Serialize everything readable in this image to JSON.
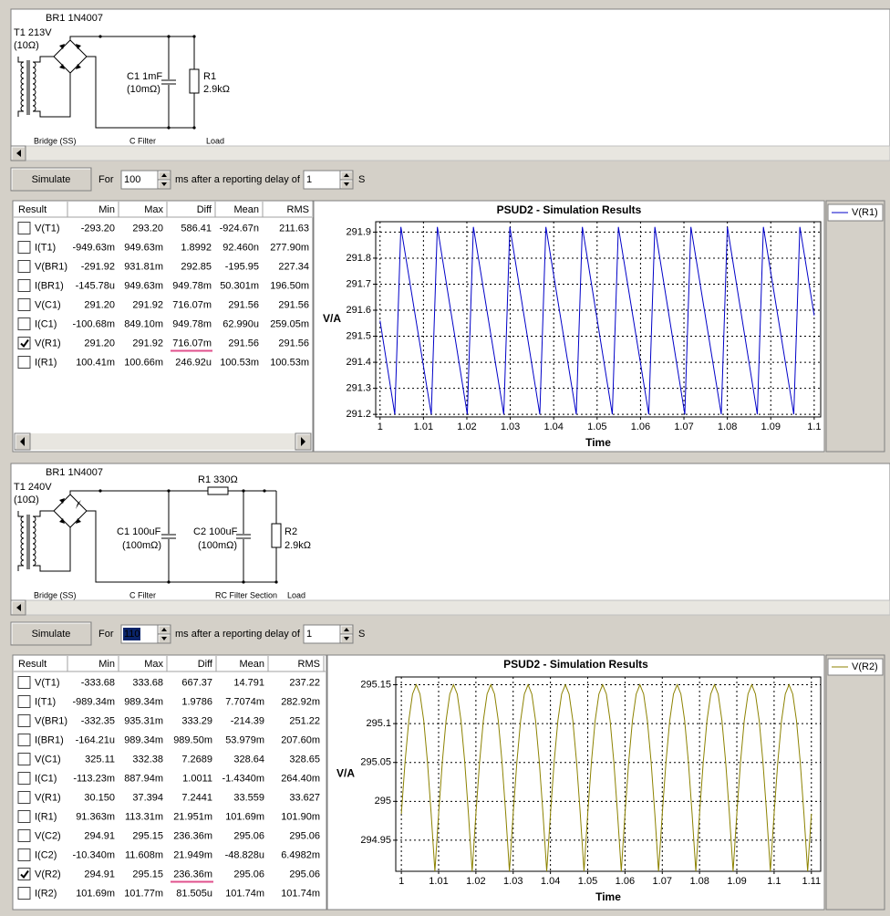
{
  "panels": [
    {
      "schematic": {
        "labels": [
          "BR1 1N4007",
          "T1 213V",
          "(10Ω)",
          "C1 1mF",
          "(10mΩ)",
          "R1",
          "2.9kΩ"
        ],
        "sections": [
          "Bridge (SS)",
          "C Filter",
          "Load"
        ]
      },
      "controls": {
        "button": "Simulate",
        "for_label": "For",
        "duration": "100",
        "ms_label": "ms  after a reporting delay of",
        "delay": "1",
        "s_label": "S"
      },
      "table": {
        "columns": [
          "Result",
          "Min",
          "Max",
          "Diff",
          "Mean",
          "RMS"
        ],
        "rows": [
          [
            "V(T1)",
            "-293.20",
            "293.20",
            "586.41",
            "-924.67n",
            "211.63"
          ],
          [
            "I(T1)",
            "-949.63m",
            "949.63m",
            "1.8992",
            "92.460n",
            "277.90m"
          ],
          [
            "V(BR1)",
            "-291.92",
            "931.81m",
            "292.85",
            "-195.95",
            "227.34"
          ],
          [
            "I(BR1)",
            "-145.78u",
            "949.63m",
            "949.78m",
            "50.301m",
            "196.50m"
          ],
          [
            "V(C1)",
            "291.20",
            "291.92",
            "716.07m",
            "291.56",
            "291.56"
          ],
          [
            "I(C1)",
            "-100.68m",
            "849.10m",
            "949.78m",
            "62.990u",
            "259.05m"
          ],
          [
            "V(R1)",
            "291.20",
            "291.92",
            "716.07m",
            "291.56",
            "291.56"
          ],
          [
            "I(R1)",
            "100.41m",
            "100.66m",
            "246.92u",
            "100.53m",
            "100.53m"
          ]
        ],
        "checked_row": 6
      },
      "chart": {
        "type": "line",
        "title": "PSUD2 - Simulation Results",
        "xlabel": "Time",
        "ylabel": "V/A",
        "x": [
          1,
          1.0034,
          1.0048,
          1.0118,
          1.0132,
          1.0201,
          1.0215,
          1.0285,
          1.0299,
          1.0368,
          1.0382,
          1.0452,
          1.0466,
          1.0535,
          1.0549,
          1.0619,
          1.0633,
          1.0702,
          1.0716,
          1.0786,
          1.08,
          1.0869,
          1.0883,
          1.0953,
          1.0967,
          1.1
        ],
        "series": [
          {
            "name": "V(R1)",
            "color": "#0000c8",
            "values": [
              291.56,
              291.2,
              291.92,
              291.2,
              291.92,
              291.2,
              291.92,
              291.2,
              291.92,
              291.2,
              291.92,
              291.2,
              291.92,
              291.2,
              291.92,
              291.2,
              291.92,
              291.2,
              291.92,
              291.2,
              291.92,
              291.2,
              291.92,
              291.2,
              291.92,
              291.58
            ]
          }
        ],
        "xlim": [
          0.999,
          1.1015
        ],
        "ylim": [
          291.19,
          291.94
        ],
        "xticks": [
          1,
          1.01,
          1.02,
          1.03,
          1.04,
          1.05,
          1.06,
          1.07,
          1.08,
          1.09,
          1.1
        ],
        "yticks": [
          291.2,
          291.3,
          291.4,
          291.5,
          291.6,
          291.7,
          291.8,
          291.9
        ],
        "grid": true
      }
    },
    {
      "schematic": {
        "labels": [
          "BR1 1N4007",
          "T1 240V",
          "(10Ω)",
          "R1 330Ω",
          "C1 100uF",
          "(100mΩ)",
          "C2 100uF",
          "(100mΩ)",
          "R2",
          "2.9kΩ"
        ],
        "sections": [
          "Bridge (SS)",
          "C Filter",
          "RC Filter Section",
          "Load"
        ]
      },
      "controls": {
        "button": "Simulate",
        "for_label": "For",
        "duration": "110",
        "ms_label": "ms  after a reporting delay of",
        "delay": "1",
        "s_label": "S"
      },
      "table": {
        "columns": [
          "Result",
          "Min",
          "Max",
          "Diff",
          "Mean",
          "RMS"
        ],
        "rows": [
          [
            "V(T1)",
            "-333.68",
            "333.68",
            "667.37",
            "14.791",
            "237.22"
          ],
          [
            "I(T1)",
            "-989.34m",
            "989.34m",
            "1.9786",
            "7.7074m",
            "282.92m"
          ],
          [
            "V(BR1)",
            "-332.35",
            "935.31m",
            "333.29",
            "-214.39",
            "251.22"
          ],
          [
            "I(BR1)",
            "-164.21u",
            "989.34m",
            "989.50m",
            "53.979m",
            "207.60m"
          ],
          [
            "V(C1)",
            "325.11",
            "332.38",
            "7.2689",
            "328.64",
            "328.65"
          ],
          [
            "I(C1)",
            "-113.23m",
            "887.94m",
            "1.0011",
            "-1.4340m",
            "264.40m"
          ],
          [
            "V(R1)",
            "30.150",
            "37.394",
            "7.2441",
            "33.559",
            "33.627"
          ],
          [
            "I(R1)",
            "91.363m",
            "113.31m",
            "21.951m",
            "101.69m",
            "101.90m"
          ],
          [
            "V(C2)",
            "294.91",
            "295.15",
            "236.36m",
            "295.06",
            "295.06"
          ],
          [
            "I(C2)",
            "-10.340m",
            "11.608m",
            "21.949m",
            "-48.828u",
            "6.4982m"
          ],
          [
            "V(R2)",
            "294.91",
            "295.15",
            "236.36m",
            "295.06",
            "295.06"
          ],
          [
            "I(R2)",
            "101.69m",
            "101.77m",
            "81.505u",
            "101.74m",
            "101.74m"
          ]
        ],
        "checked_row": 10
      },
      "chart": {
        "type": "line",
        "title": "PSUD2 - Simulation Results",
        "xlabel": "Time",
        "ylabel": "V/A",
        "x": [
          1,
          1.001,
          1.002,
          1.003,
          1.004,
          1.005,
          1.006,
          1.007,
          1.008,
          1.009,
          1.01,
          1.011,
          1.012,
          1.013,
          1.014,
          1.015,
          1.016,
          1.017,
          1.018,
          1.019,
          1.02,
          1.021,
          1.022,
          1.023,
          1.024,
          1.025,
          1.026,
          1.027,
          1.028,
          1.029,
          1.03,
          1.031,
          1.032,
          1.033,
          1.034,
          1.035,
          1.036,
          1.037,
          1.038,
          1.039,
          1.04,
          1.041,
          1.042,
          1.043,
          1.044,
          1.045,
          1.046,
          1.047,
          1.048,
          1.049,
          1.05,
          1.051,
          1.052,
          1.053,
          1.054,
          1.055,
          1.056,
          1.057,
          1.058,
          1.059,
          1.06,
          1.061,
          1.062,
          1.063,
          1.064,
          1.065,
          1.066,
          1.067,
          1.068,
          1.069,
          1.07,
          1.071,
          1.072,
          1.073,
          1.074,
          1.075,
          1.076,
          1.077,
          1.078,
          1.079,
          1.08,
          1.081,
          1.082,
          1.083,
          1.084,
          1.085,
          1.086,
          1.087,
          1.088,
          1.089,
          1.09,
          1.091,
          1.092,
          1.093,
          1.094,
          1.095,
          1.096,
          1.097,
          1.098,
          1.099,
          1.1,
          1.101,
          1.102,
          1.103,
          1.104,
          1.105,
          1.106,
          1.107,
          1.108,
          1.109,
          1.11
        ],
        "series": [
          {
            "name": "V(R2)",
            "color": "#8c8200",
            "values": [
              294.984,
              295.051,
              295.104,
              295.138,
              295.15,
              295.138,
              295.104,
              295.051,
              294.984,
              294.91,
              294.984,
              295.051,
              295.104,
              295.138,
              295.15,
              295.138,
              295.104,
              295.051,
              294.984,
              294.91,
              294.984,
              295.051,
              295.104,
              295.138,
              295.15,
              295.138,
              295.104,
              295.051,
              294.984,
              294.91,
              294.984,
              295.051,
              295.104,
              295.138,
              295.15,
              295.138,
              295.104,
              295.051,
              294.984,
              294.91,
              294.984,
              295.051,
              295.104,
              295.138,
              295.15,
              295.138,
              295.104,
              295.051,
              294.984,
              294.91,
              294.984,
              295.051,
              295.104,
              295.138,
              295.15,
              295.138,
              295.104,
              295.051,
              294.984,
              294.91,
              294.984,
              295.051,
              295.104,
              295.138,
              295.15,
              295.138,
              295.104,
              295.051,
              294.984,
              294.91,
              294.984,
              295.051,
              295.104,
              295.138,
              295.15,
              295.138,
              295.104,
              295.051,
              294.984,
              294.91,
              294.984,
              295.051,
              295.104,
              295.138,
              295.15,
              295.138,
              295.104,
              295.051,
              294.984,
              294.91,
              294.984,
              295.051,
              295.104,
              295.138,
              295.15,
              295.138,
              295.104,
              295.051,
              294.984,
              294.91,
              294.984,
              295.051,
              295.104,
              295.138,
              295.15,
              295.138,
              295.104,
              295.051,
              294.984,
              294.91,
              294.984
            ]
          }
        ],
        "xlim": [
          0.9985,
          1.1125
        ],
        "ylim": [
          294.91,
          295.16
        ],
        "xticks": [
          1,
          1.01,
          1.02,
          1.03,
          1.04,
          1.05,
          1.06,
          1.07,
          1.08,
          1.09,
          1.1,
          1.11
        ],
        "yticks": [
          294.95,
          295,
          295.05,
          295.1,
          295.15
        ],
        "grid": true
      }
    }
  ]
}
